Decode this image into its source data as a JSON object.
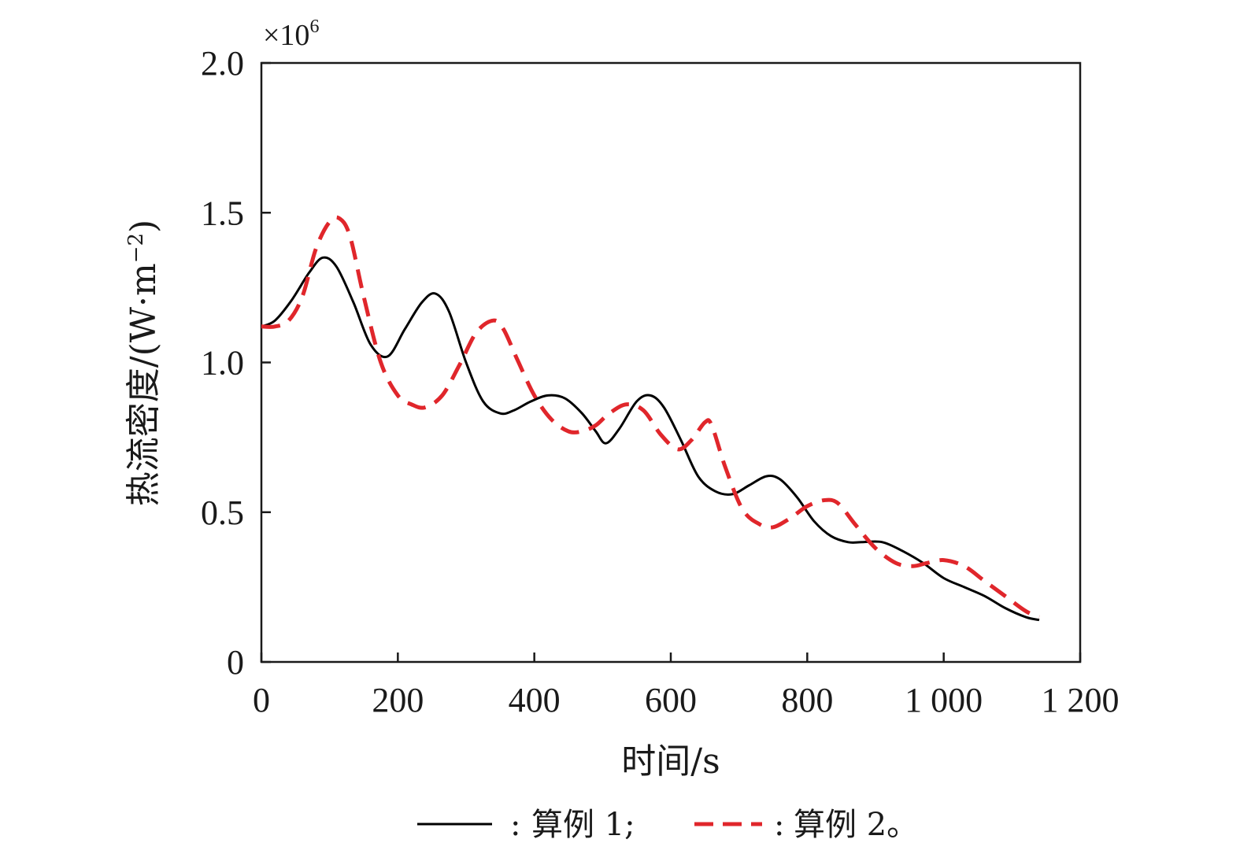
{
  "chart_data": {
    "type": "line",
    "xlabel": "时间/s",
    "ylabel": "热流密度/(W·m",
    "ylabel_sup": "−2",
    "ylabel_close": ")",
    "y_multiplier": "×10",
    "y_multiplier_exp": "6",
    "xlim": [
      0,
      1200
    ],
    "ylim": [
      0,
      2.0
    ],
    "x_ticks": [
      0,
      200,
      400,
      600,
      800,
      1000,
      1200
    ],
    "x_tick_labels": [
      "0",
      "200",
      "400",
      "600",
      "800",
      "1 000",
      "1 200"
    ],
    "y_ticks": [
      0,
      0.5,
      1.0,
      1.5,
      2.0
    ],
    "y_tick_labels": [
      "0",
      "0.5",
      "1.0",
      "1.5",
      "2.0"
    ],
    "grid": false,
    "legend_position": "bottom",
    "series": [
      {
        "name": "算例 1;",
        "color": "#000000",
        "style": "solid",
        "x": [
          0,
          20,
          45,
          70,
          90,
          110,
          135,
          160,
          185,
          210,
          235,
          255,
          275,
          300,
          325,
          350,
          370,
          395,
          420,
          445,
          470,
          490,
          505,
          525,
          550,
          570,
          590,
          615,
          640,
          665,
          690,
          715,
          740,
          760,
          785,
          810,
          835,
          860,
          880,
          910,
          940,
          970,
          1000,
          1030,
          1060,
          1090,
          1120,
          1140
        ],
        "y": [
          1.12,
          1.14,
          1.21,
          1.3,
          1.35,
          1.32,
          1.2,
          1.06,
          1.02,
          1.11,
          1.2,
          1.23,
          1.17,
          1.0,
          0.87,
          0.83,
          0.84,
          0.87,
          0.89,
          0.88,
          0.83,
          0.77,
          0.73,
          0.78,
          0.87,
          0.89,
          0.85,
          0.74,
          0.62,
          0.57,
          0.56,
          0.59,
          0.62,
          0.61,
          0.55,
          0.47,
          0.42,
          0.4,
          0.4,
          0.4,
          0.37,
          0.33,
          0.28,
          0.25,
          0.22,
          0.18,
          0.15,
          0.14
        ]
      },
      {
        "name": "算例 2。",
        "color": "#e0262b",
        "style": "dashed",
        "x": [
          0,
          20,
          40,
          60,
          80,
          100,
          115,
          130,
          150,
          175,
          200,
          220,
          240,
          265,
          290,
          315,
          340,
          355,
          375,
          400,
          425,
          450,
          470,
          490,
          510,
          535,
          560,
          585,
          610,
          630,
          650,
          660,
          680,
          705,
          730,
          750,
          775,
          800,
          825,
          845,
          870,
          900,
          930,
          955,
          975,
          1000,
          1030,
          1060,
          1090,
          1120,
          1140
        ],
        "y": [
          1.12,
          1.12,
          1.14,
          1.22,
          1.38,
          1.47,
          1.48,
          1.42,
          1.22,
          1.0,
          0.89,
          0.86,
          0.85,
          0.89,
          0.99,
          1.1,
          1.14,
          1.11,
          1.01,
          0.89,
          0.81,
          0.77,
          0.77,
          0.79,
          0.83,
          0.86,
          0.84,
          0.76,
          0.71,
          0.74,
          0.8,
          0.79,
          0.65,
          0.51,
          0.46,
          0.45,
          0.48,
          0.52,
          0.54,
          0.53,
          0.46,
          0.38,
          0.33,
          0.32,
          0.33,
          0.34,
          0.32,
          0.27,
          0.22,
          0.17,
          0.15
        ]
      }
    ]
  }
}
